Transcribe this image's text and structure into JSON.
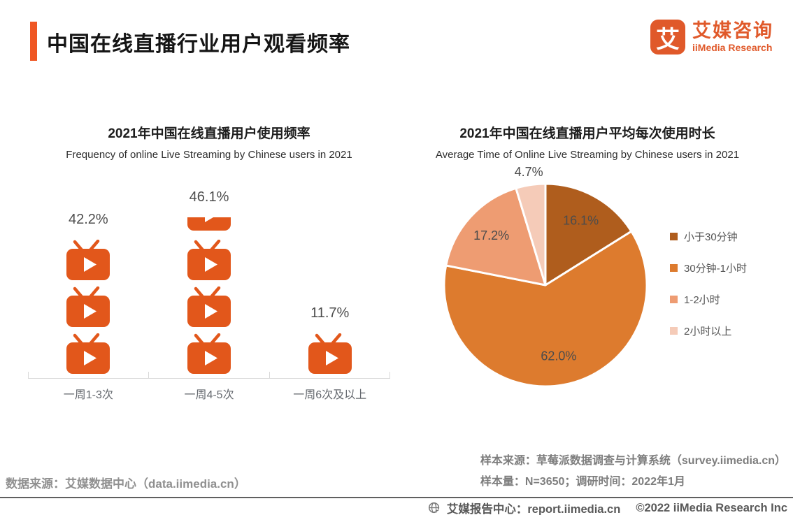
{
  "header": {
    "title": "中国在线直播行业用户观看频率",
    "logo": {
      "glyph": "艾",
      "name_zh": "艾媒咨询",
      "name_en": "iiMedia Research"
    }
  },
  "colors": {
    "brand_orange": "#e0592a",
    "accent_bar": "#ef5724",
    "tv_icon": "#e2571b",
    "pie_border": "#ffffff"
  },
  "chart_data": [
    {
      "type": "bar",
      "style": "pictograph-tv",
      "title": "2021年中国在线直播用户使用频率",
      "subtitle": "Frequency of online Live Streaming by Chinese users in 2021",
      "categories": [
        "一周1-3次",
        "一周4-5次",
        "一周6次及以上"
      ],
      "values": [
        42.2,
        46.1,
        11.7
      ],
      "unit": "%",
      "icons_full": [
        3,
        3,
        1
      ],
      "icons_partial": [
        0,
        1,
        0
      ]
    },
    {
      "type": "pie",
      "title": "2021年中国在线直播用户平均每次使用时长",
      "subtitle": "Average Time of Online Live Streaming by Chinese users in 2021",
      "labels": [
        "小于30分钟",
        "30分钟-1小时",
        "1-2小时",
        "2小时以上"
      ],
      "values": [
        16.1,
        62.0,
        17.2,
        4.7
      ],
      "colors": [
        "#af5d1d",
        "#dd7b2e",
        "#ee9c72",
        "#f5cbb8"
      ],
      "start_angle_deg": 0,
      "direction": "clockwise",
      "legend_position": "right",
      "label_format": "value%"
    }
  ],
  "sources": {
    "data_source": "数据来源：艾媒数据中心（data.iimedia.cn）",
    "sample_source": "样本来源：草莓派数据调查与计算系统（survey.iimedia.cn）",
    "sample_info": "样本量：N=3650；调研时间：2022年1月"
  },
  "footer": {
    "icon": "globe-cursor-icon",
    "site_label": "艾媒报告中心：report.iimedia.cn",
    "copyright": "©2022  iiMedia Research Inc"
  }
}
